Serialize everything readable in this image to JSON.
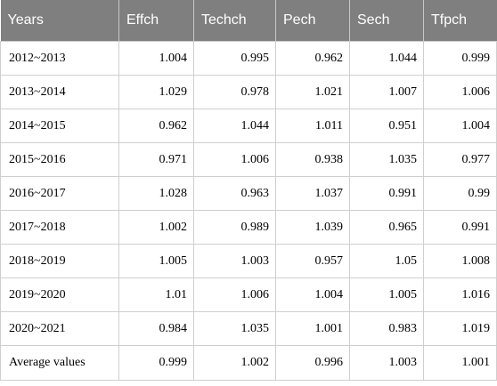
{
  "table": {
    "headers": [
      "Years",
      "Effch",
      "Techch",
      "Pech",
      "Sech",
      "Tfpch"
    ],
    "rows": [
      [
        "2012~2013",
        "1.004",
        "0.995",
        "0.962",
        "1.044",
        "0.999"
      ],
      [
        "2013~2014",
        "1.029",
        "0.978",
        "1.021",
        "1.007",
        "1.006"
      ],
      [
        "2014~2015",
        "0.962",
        "1.044",
        "1.011",
        "0.951",
        "1.004"
      ],
      [
        "2015~2016",
        "0.971",
        "1.006",
        "0.938",
        "1.035",
        "0.977"
      ],
      [
        "2016~2017",
        "1.028",
        "0.963",
        "1.037",
        "0.991",
        "0.99"
      ],
      [
        "2017~2018",
        "1.002",
        "0.989",
        "1.039",
        "0.965",
        "0.991"
      ],
      [
        "2018~2019",
        "1.005",
        "1.003",
        "0.957",
        "1.05",
        "1.008"
      ],
      [
        "2019~2020",
        "1.01",
        "1.006",
        "1.004",
        "1.005",
        "1.016"
      ],
      [
        "2020~2021",
        "0.984",
        "1.035",
        "1.001",
        "0.983",
        "1.019"
      ],
      [
        "Average values",
        "0.999",
        "1.002",
        "0.996",
        "1.003",
        "1.001"
      ]
    ]
  },
  "colors": {
    "header_bg": "#7f7f7f",
    "header_text": "#ffffff",
    "grid": "#cfcfcf"
  }
}
